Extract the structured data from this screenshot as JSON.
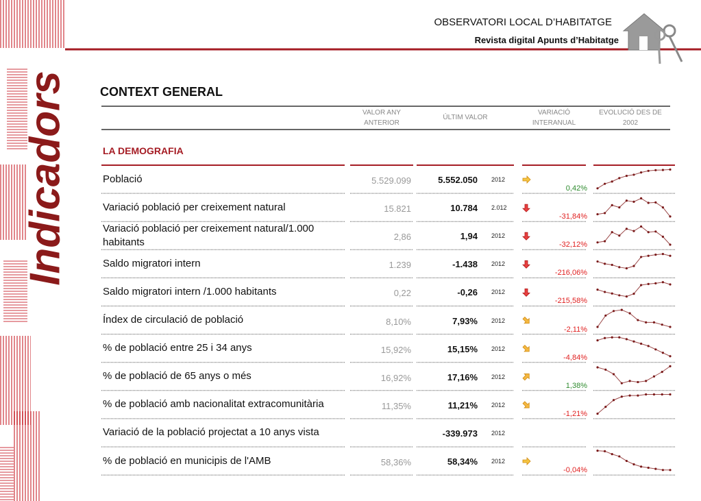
{
  "header": {
    "title": "OBSERVATORI LOCAL D’HABITATGE",
    "subtitle": "Revista digital Apunts d’Habitatge"
  },
  "sidebar": "Indicadors",
  "section_title": "CONTEXT GENERAL",
  "table": {
    "columns": [
      "VALOR ANY ANTERIOR",
      "ÚLTIM VALOR",
      "VARIACIÓ INTERANUAL",
      "EVOLUCIÓ DES DE 2002"
    ],
    "group": "LA DEMOGRAFIA",
    "rows": [
      {
        "label": "Població",
        "previous": "5.529.099",
        "last": "5.552.050",
        "year": "2012",
        "arrow": "right",
        "variation": "0,42%",
        "variation_color": "#2e8b2e",
        "trend": [
          1,
          3,
          4,
          5.5,
          6.5,
          7,
          8,
          8.7,
          9,
          9.1,
          9.3
        ]
      },
      {
        "label": "Variació població per creixement natural",
        "previous": "15.821",
        "last": "10.784",
        "year": "2.012",
        "arrow": "down",
        "variation": "-31,84%",
        "variation_color": "#e02020",
        "trend": [
          2,
          2.5,
          6,
          5,
          8,
          7.5,
          9,
          7,
          7.2,
          5,
          1
        ]
      },
      {
        "label": "Variació població per creixement natural/1.000 habitants",
        "previous": "2,86",
        "last": "1,94",
        "year": "2012",
        "arrow": "down",
        "variation": "-32,12%",
        "variation_color": "#e02020",
        "trend": [
          2,
          2.5,
          6.5,
          5,
          8,
          7,
          9,
          6.5,
          6.8,
          4.5,
          1
        ]
      },
      {
        "label": "Saldo migratori intern",
        "previous": "1.239",
        "last": "-1.438",
        "year": "2012",
        "arrow": "down",
        "variation": "-216,06%",
        "variation_color": "#e02020",
        "trend": [
          6,
          5,
          4.5,
          3.5,
          3,
          4,
          8,
          8.5,
          9,
          9.3,
          8.5
        ]
      },
      {
        "label": "Saldo migratori intern /1.000 habitants",
        "previous": "0,22",
        "last": "-0,26",
        "year": "2012",
        "arrow": "down",
        "variation": "-215,58%",
        "variation_color": "#e02020",
        "trend": [
          6,
          5,
          4.3,
          3.5,
          3,
          4.2,
          8,
          8.5,
          8.8,
          9.3,
          8.3
        ]
      },
      {
        "label": "Índex de circulació de població",
        "previous": "8,10%",
        "last": "7,93%",
        "year": "2012",
        "arrow": "down-right",
        "variation": "-2,11%",
        "variation_color": "#e02020",
        "trend": [
          2,
          7,
          9,
          9.5,
          8,
          5,
          4,
          4,
          3,
          2
        ]
      },
      {
        "label": "% de població entre 25 i 34 anys",
        "previous": "15,92%",
        "last": "15,15%",
        "year": "2012",
        "arrow": "down-right",
        "variation": "-4,84%",
        "variation_color": "#e02020",
        "trend": [
          8.5,
          9.5,
          9.8,
          9.8,
          9,
          8,
          7,
          6,
          4.5,
          3,
          1.5
        ]
      },
      {
        "label": "% de població de 65 anys o més",
        "previous": "16,92%",
        "last": "17,16%",
        "year": "2012",
        "arrow": "up-right",
        "variation": "1,38%",
        "variation_color": "#2e8b2e",
        "trend": [
          9,
          8,
          6,
          2,
          3,
          2.5,
          3,
          5,
          7,
          9.5
        ]
      },
      {
        "label": "% de població amb nacionalitat extracomunitària",
        "previous": "11,35%",
        "last": "11,21%",
        "year": "2012",
        "arrow": "down-right",
        "variation": "-1,21%",
        "variation_color": "#e02020",
        "trend": [
          1,
          4,
          7,
          8.5,
          9,
          9,
          9.5,
          9.5,
          9.5,
          9.5
        ]
      },
      {
        "label": "Variació de la població projectat a 10 anys vista",
        "previous": null,
        "last": "-339.973",
        "year": "2012",
        "arrow": null,
        "variation": null,
        "variation_color": null,
        "trend": null
      },
      {
        "label": "% de població en municipis de l'AMB",
        "previous": "58,36%",
        "last": "58,34%",
        "year": "2012",
        "arrow": "right",
        "variation": "-0,04%",
        "variation_color": "#e02020",
        "trend": [
          9.5,
          9.3,
          8,
          7,
          5,
          3.5,
          2.5,
          2,
          1.5,
          1,
          1
        ]
      }
    ]
  }
}
